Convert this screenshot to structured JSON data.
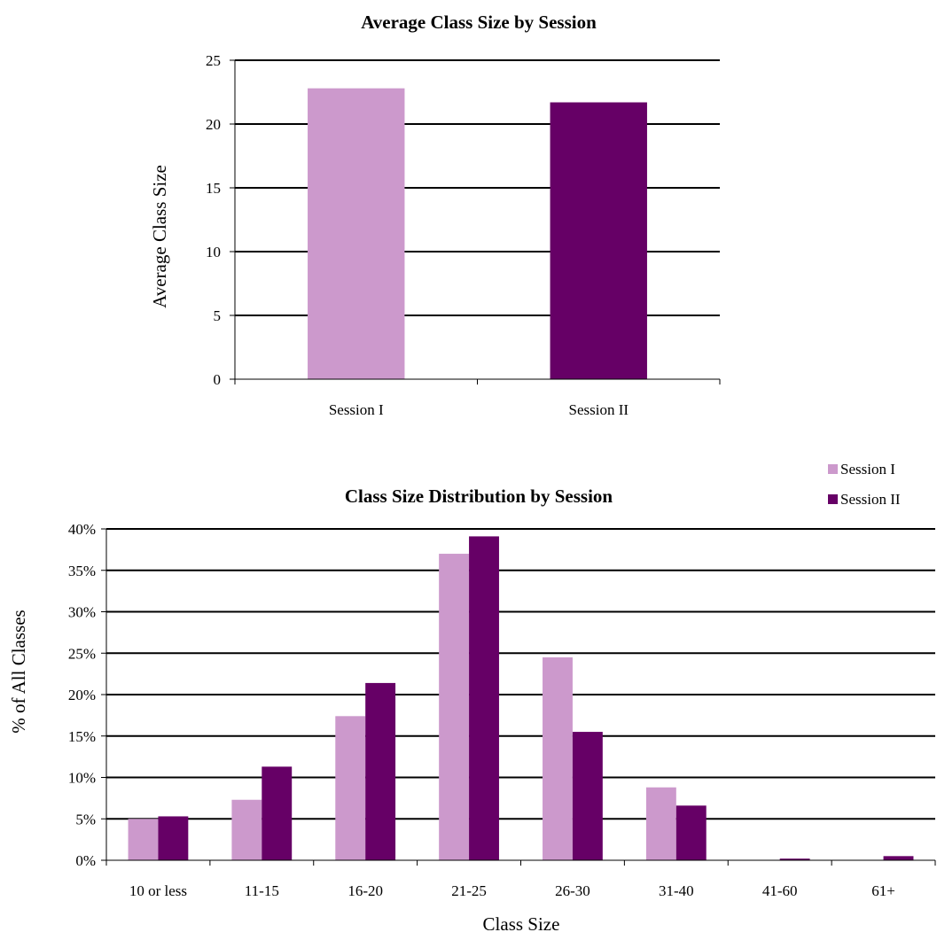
{
  "colors": {
    "session1": "#CC99CC",
    "session2": "#660066"
  },
  "chart_data": [
    {
      "type": "bar",
      "title": "Average Class Size by Session",
      "xlabel": "",
      "ylabel": "Average Class Size",
      "categories": [
        "Session I",
        "Session II"
      ],
      "values": [
        22.8,
        21.7
      ],
      "ylim": [
        0,
        25
      ],
      "yticks": [
        "0",
        "5",
        "10",
        "15",
        "20",
        "25"
      ],
      "grid": true
    },
    {
      "type": "bar",
      "title": "Class Size Distribution by Session",
      "xlabel": "Class Size",
      "ylabel": "% of All Classes",
      "categories": [
        "10 or less",
        "11-15",
        "16-20",
        "21-25",
        "26-30",
        "31-40",
        "41-60",
        "61+"
      ],
      "series": [
        {
          "name": "Session I",
          "values": [
            5.0,
            7.3,
            17.4,
            37.0,
            24.5,
            8.8,
            0.0,
            0.0
          ]
        },
        {
          "name": "Session II",
          "values": [
            5.3,
            11.3,
            21.4,
            39.1,
            15.5,
            6.6,
            0.2,
            0.5
          ]
        }
      ],
      "ylim": [
        0,
        40
      ],
      "yticks": [
        "0%",
        "5%",
        "10%",
        "15%",
        "20%",
        "25%",
        "30%",
        "35%",
        "40%"
      ],
      "legend": {
        "position": "top-right",
        "labels": [
          "Session I",
          "Session II"
        ]
      },
      "grid": true
    }
  ]
}
